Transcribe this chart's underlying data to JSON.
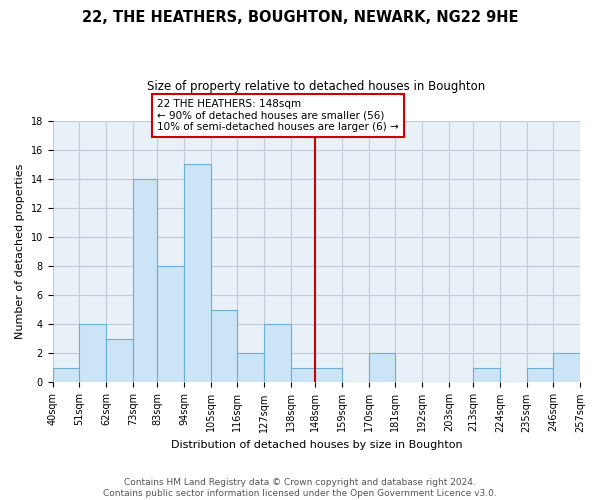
{
  "title": "22, THE HEATHERS, BOUGHTON, NEWARK, NG22 9HE",
  "subtitle": "Size of property relative to detached houses in Boughton",
  "xlabel": "Distribution of detached houses by size in Boughton",
  "ylabel": "Number of detached properties",
  "bins": [
    40,
    51,
    62,
    73,
    83,
    94,
    105,
    116,
    127,
    138,
    148,
    159,
    170,
    181,
    192,
    203,
    213,
    224,
    235,
    246,
    257
  ],
  "bin_labels": [
    "40sqm",
    "51sqm",
    "62sqm",
    "73sqm",
    "83sqm",
    "94sqm",
    "105sqm",
    "116sqm",
    "127sqm",
    "138sqm",
    "148sqm",
    "159sqm",
    "170sqm",
    "181sqm",
    "192sqm",
    "203sqm",
    "213sqm",
    "224sqm",
    "235sqm",
    "246sqm",
    "257sqm"
  ],
  "counts": [
    1,
    4,
    3,
    14,
    8,
    15,
    5,
    2,
    4,
    1,
    1,
    0,
    2,
    0,
    0,
    0,
    1,
    0,
    1,
    2
  ],
  "bar_color": "#cce5f6",
  "bar_edge_color": "#6baed6",
  "property_line_x": 148,
  "property_line_color": "#cc0000",
  "annotation_title": "22 THE HEATHERS: 148sqm",
  "annotation_line1": "← 90% of detached houses are smaller (56)",
  "annotation_line2": "10% of semi-detached houses are larger (6) →",
  "annotation_box_color": "#ffffff",
  "annotation_box_edge": "#cc0000",
  "ylim": [
    0,
    18
  ],
  "yticks": [
    0,
    2,
    4,
    6,
    8,
    10,
    12,
    14,
    16,
    18
  ],
  "footer_line1": "Contains HM Land Registry data © Crown copyright and database right 2024.",
  "footer_line2": "Contains public sector information licensed under the Open Government Licence v3.0.",
  "background_color": "#ffffff",
  "plot_bg_color": "#e8f0f8",
  "grid_color": "#c0ccd8",
  "title_fontsize": 10.5,
  "subtitle_fontsize": 8.5,
  "axis_label_fontsize": 8,
  "tick_fontsize": 7,
  "footer_fontsize": 6.5
}
